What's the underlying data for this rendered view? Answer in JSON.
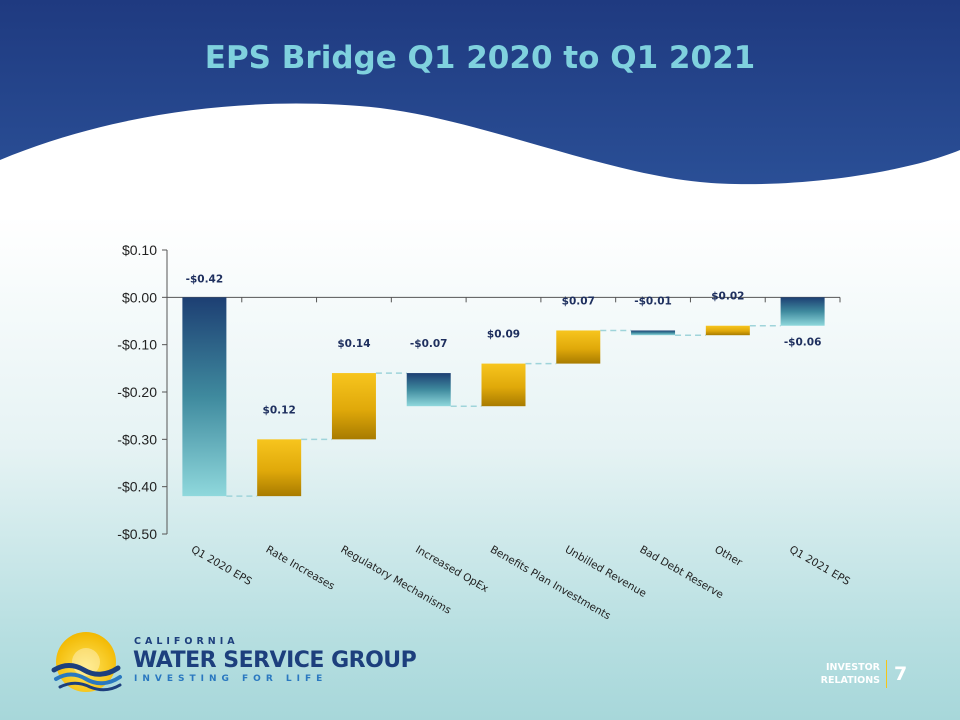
{
  "slide": {
    "title": "EPS Bridge Q1 2020 to Q1 2021",
    "page_number": "7",
    "footer_label_line1": "INVESTOR",
    "footer_label_line2": "RELATIONS"
  },
  "logo": {
    "line1": "CALIFORNIA",
    "line2": "WATER SERVICE GROUP",
    "line3": "INVESTING FOR LIFE"
  },
  "colors": {
    "header_navy": "#223e85",
    "title_cyan": "#7fd1de",
    "increase_gold_top": "#f7c51e",
    "increase_gold_bottom": "#a87b00",
    "decrease_navy": "#1d3f73",
    "decrease_teal": "#8fd8dc",
    "connector": "#9fd4da"
  },
  "chart_data": {
    "type": "bar",
    "subtype": "waterfall",
    "title": "",
    "xlabel": "",
    "ylabel": "",
    "ylim": [
      -0.5,
      0.1
    ],
    "ytick_values": [
      0.1,
      0.0,
      -0.1,
      -0.2,
      -0.3,
      -0.4,
      -0.5
    ],
    "yticks": [
      "$0.10",
      "$0.00",
      "-$0.10",
      "-$0.20",
      "-$0.30",
      "-$0.40",
      "-$0.50"
    ],
    "grid": false,
    "legend": "none",
    "categories": [
      "Q1 2020 EPS",
      "Rate Increases",
      "Regulatory Mechanisms",
      "Increased OpEx",
      "Benefits Plan Investments",
      "Unbilled Revenue",
      "Bad Debt Reserve",
      "Other",
      "Q1 2021 EPS"
    ],
    "values": [
      -0.42,
      0.12,
      0.14,
      -0.07,
      0.09,
      0.07,
      -0.01,
      0.02,
      -0.06
    ],
    "labels": [
      "-$0.42",
      "$0.12",
      "$0.14",
      "-$0.07",
      "$0.09",
      "$0.07",
      "-$0.01",
      "$0.02",
      "-$0.06"
    ],
    "kinds": [
      "total",
      "delta",
      "delta",
      "delta",
      "delta",
      "delta",
      "delta",
      "delta",
      "total"
    ]
  }
}
